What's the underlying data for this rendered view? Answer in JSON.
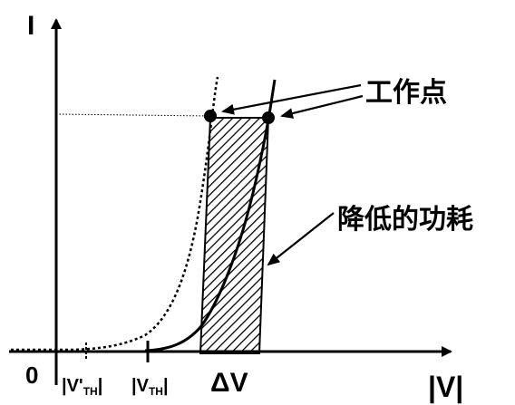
{
  "axes": {
    "y_label": "I",
    "x_label": "|V|",
    "origin_label": "0"
  },
  "ticks": {
    "vth_prime": {
      "main": "|V'",
      "sub": "TH",
      "end": "|"
    },
    "vth": {
      "main": "|V",
      "sub": "TH",
      "end": "|"
    },
    "delta_v": "ΔV"
  },
  "annotations": {
    "operating_point": "工作点",
    "reduced_power": "降低的功耗"
  },
  "colors": {
    "line": "#000000",
    "background": "#ffffff",
    "point": "#000000"
  }
}
